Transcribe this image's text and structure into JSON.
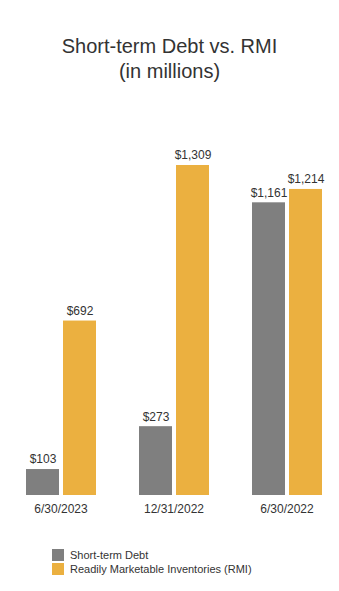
{
  "chart_data": {
    "type": "bar",
    "title": "Short-term Debt vs. RMI",
    "subtitle": "(in millions)",
    "categories": [
      "6/30/2023",
      "12/31/2022",
      "6/30/2022"
    ],
    "series": [
      {
        "name": "Short-term Debt",
        "color": "#7f7f7f",
        "values": [
          103,
          273,
          1161
        ],
        "value_labels": [
          "$103",
          "$273",
          "$1,161"
        ]
      },
      {
        "name": "Readily Marketable Inventories (RMI)",
        "color": "#ebb040",
        "values": [
          692,
          1309,
          1214
        ],
        "value_labels": [
          "$692",
          "$1,309",
          "$1,214"
        ]
      }
    ],
    "data_labels": true,
    "tick_labels": "x",
    "grid": false,
    "legend": "bottom-left"
  }
}
